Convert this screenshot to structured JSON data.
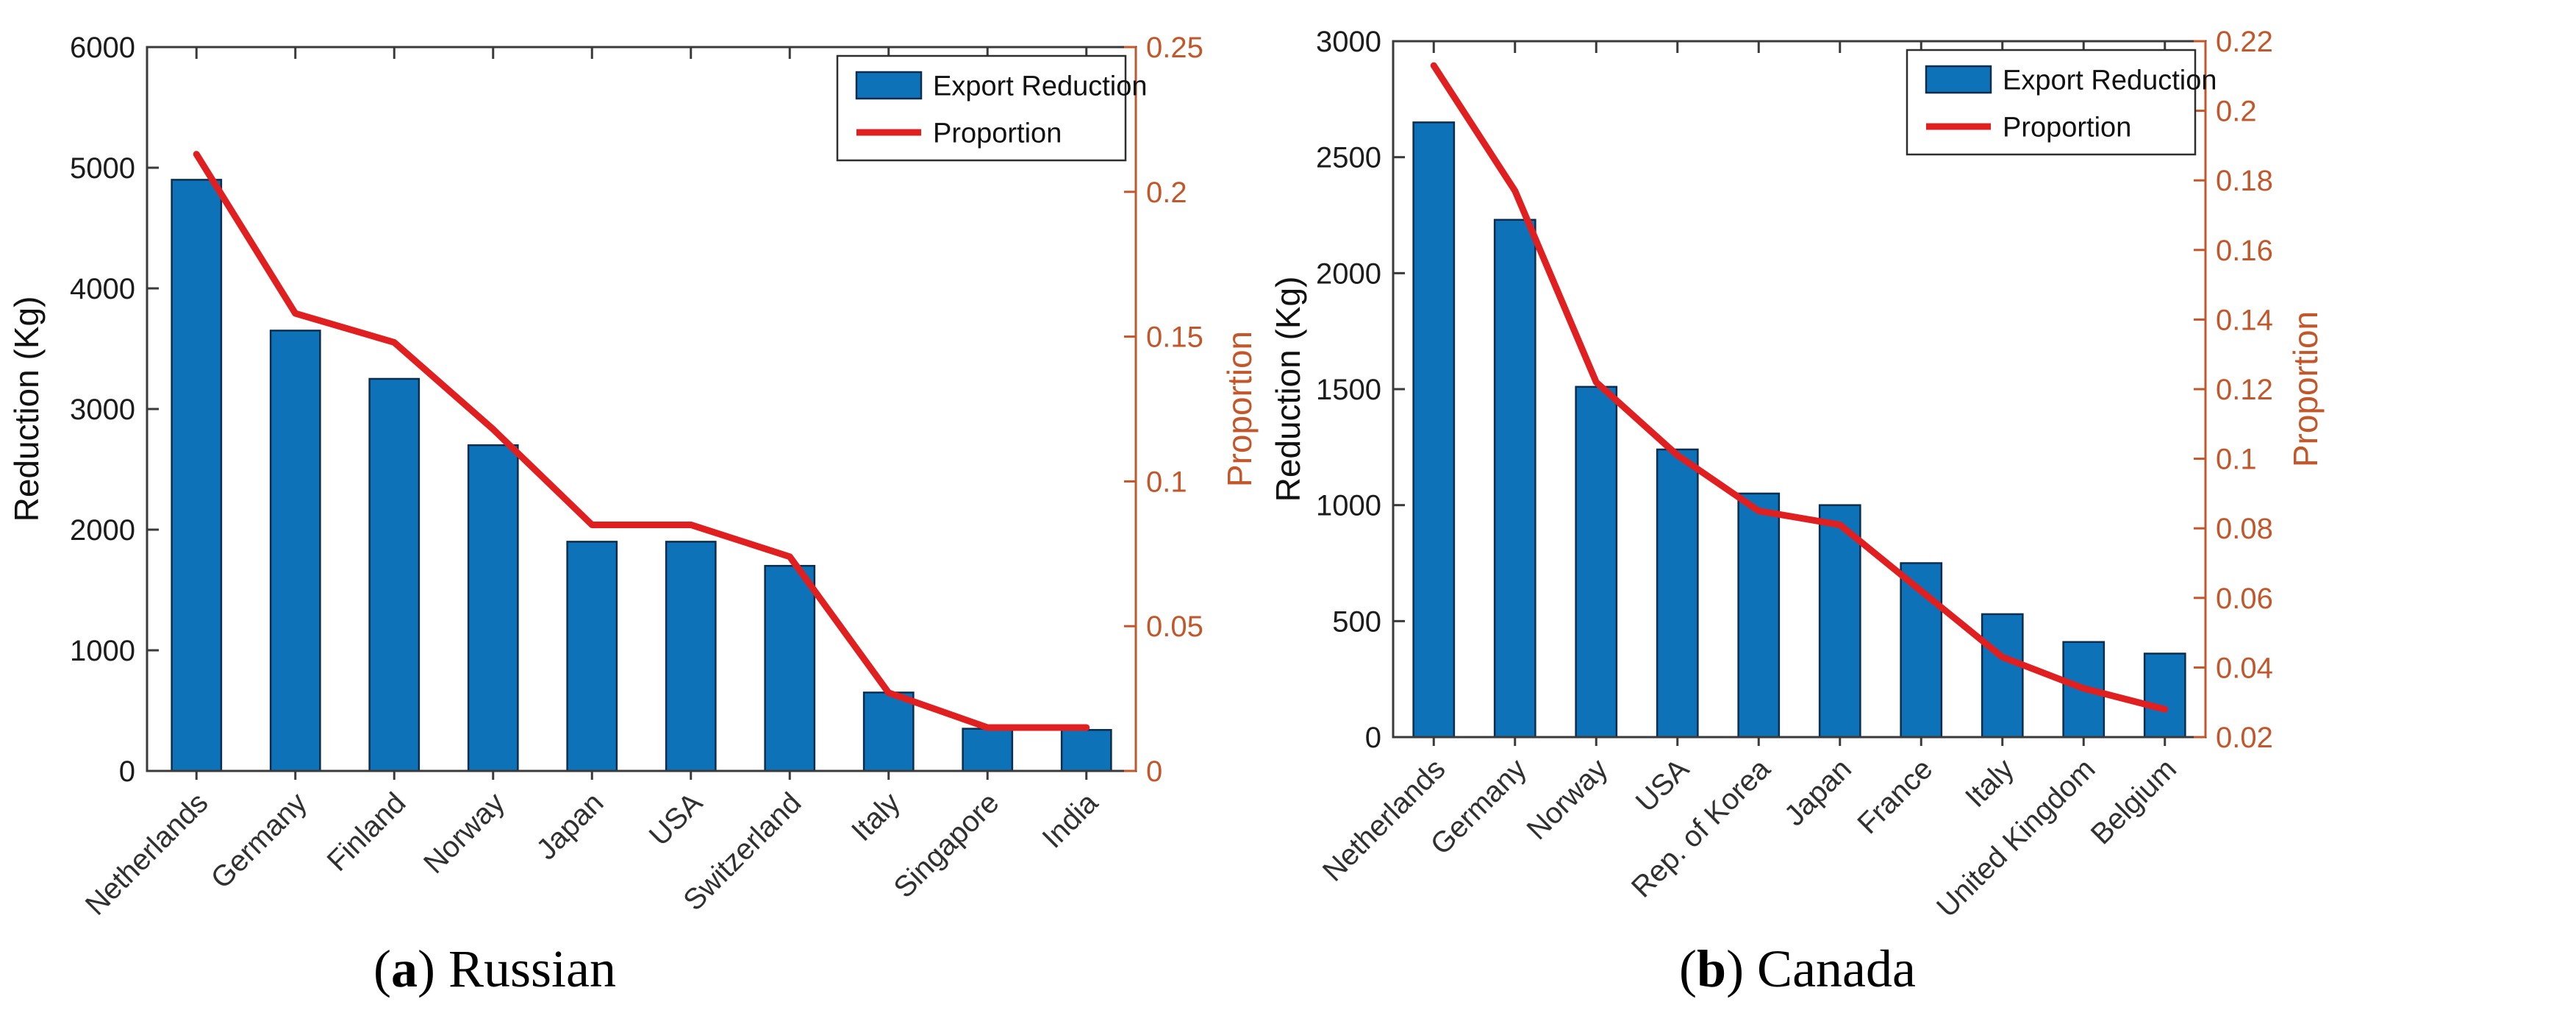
{
  "figure": {
    "colors": {
      "bar_fill": "#0e72b8",
      "bar_edge": "#0b2e4f",
      "line": "#e02020",
      "right_axis": "#c2572b",
      "axis": "#3a3a3a",
      "tick_text": "#1c1c1c",
      "category_text": "#303030"
    },
    "legend": {
      "bar_label": "Export Reduction",
      "line_label": "Proportion"
    }
  },
  "chart_data": [
    {
      "type": "bar",
      "subtype": "bar+line-dual-axis",
      "caption_letter": "a",
      "caption_label": "Russian",
      "categories": [
        "Netherlands",
        "Germany",
        "Finland",
        "Norway",
        "Japan",
        "USA",
        "Switzerland",
        "Italy",
        "Singapore",
        "India"
      ],
      "series": [
        {
          "name": "Export Reduction",
          "axis": "left",
          "type": "bar",
          "values": [
            4900,
            3650,
            3250,
            2700,
            1900,
            1900,
            1700,
            650,
            350,
            340
          ]
        },
        {
          "name": "Proportion",
          "axis": "right",
          "type": "line",
          "values": [
            0.213,
            0.158,
            0.148,
            0.118,
            0.085,
            0.085,
            0.074,
            0.027,
            0.015,
            0.015
          ]
        }
      ],
      "left_axis": {
        "label": "Reduction (Kg)",
        "min": 0,
        "max": 6000,
        "tick_values": [
          0,
          1000,
          2000,
          3000,
          4000,
          5000,
          6000
        ],
        "tick_labels": [
          "0",
          "1000",
          "2000",
          "3000",
          "4000",
          "5000",
          "6000"
        ]
      },
      "right_axis": {
        "label": "Proportion",
        "min": 0,
        "max": 0.25,
        "tick_values": [
          0,
          0.05,
          0.1,
          0.15,
          0.2,
          0.25
        ],
        "tick_labels": [
          "0",
          "0.05",
          "0.1",
          "0.15",
          "0.2",
          "0.25"
        ]
      },
      "legend": [
        "Export Reduction",
        "Proportion"
      ],
      "legend_position": "top-right",
      "grid": false
    },
    {
      "type": "bar",
      "subtype": "bar+line-dual-axis",
      "caption_letter": "b",
      "caption_label": "Canada",
      "categories": [
        "Netherlands",
        "Germany",
        "Norway",
        "USA",
        "Rep. of Korea",
        "Japan",
        "France",
        "Italy",
        "United Kingdom",
        "Belgium"
      ],
      "series": [
        {
          "name": "Export Reduction",
          "axis": "left",
          "type": "bar",
          "values": [
            2650,
            2230,
            1510,
            1240,
            1050,
            1000,
            750,
            530,
            410,
            360
          ]
        },
        {
          "name": "Proportion",
          "axis": "right",
          "type": "line",
          "values": [
            0.213,
            0.177,
            0.122,
            0.101,
            0.085,
            0.081,
            0.062,
            0.043,
            0.034,
            0.028
          ]
        }
      ],
      "left_axis": {
        "label": "Reduction (Kg)",
        "min": 0,
        "max": 3000,
        "tick_values": [
          0,
          500,
          1000,
          1500,
          2000,
          2500,
          3000
        ],
        "tick_labels": [
          "0",
          "500",
          "1000",
          "1500",
          "2000",
          "2500",
          "3000"
        ]
      },
      "right_axis": {
        "label": "Proportion",
        "min": 0.02,
        "max": 0.22,
        "tick_values": [
          0.02,
          0.04,
          0.06,
          0.08,
          0.1,
          0.12,
          0.14,
          0.16,
          0.18,
          0.2,
          0.22
        ],
        "tick_labels": [
          "0.02",
          "0.04",
          "0.06",
          "0.08",
          "0.1",
          "0.12",
          "0.14",
          "0.16",
          "0.18",
          "0.2",
          "0.22"
        ]
      },
      "legend": [
        "Export Reduction",
        "Proportion"
      ],
      "legend_position": "top-right",
      "grid": false
    }
  ]
}
